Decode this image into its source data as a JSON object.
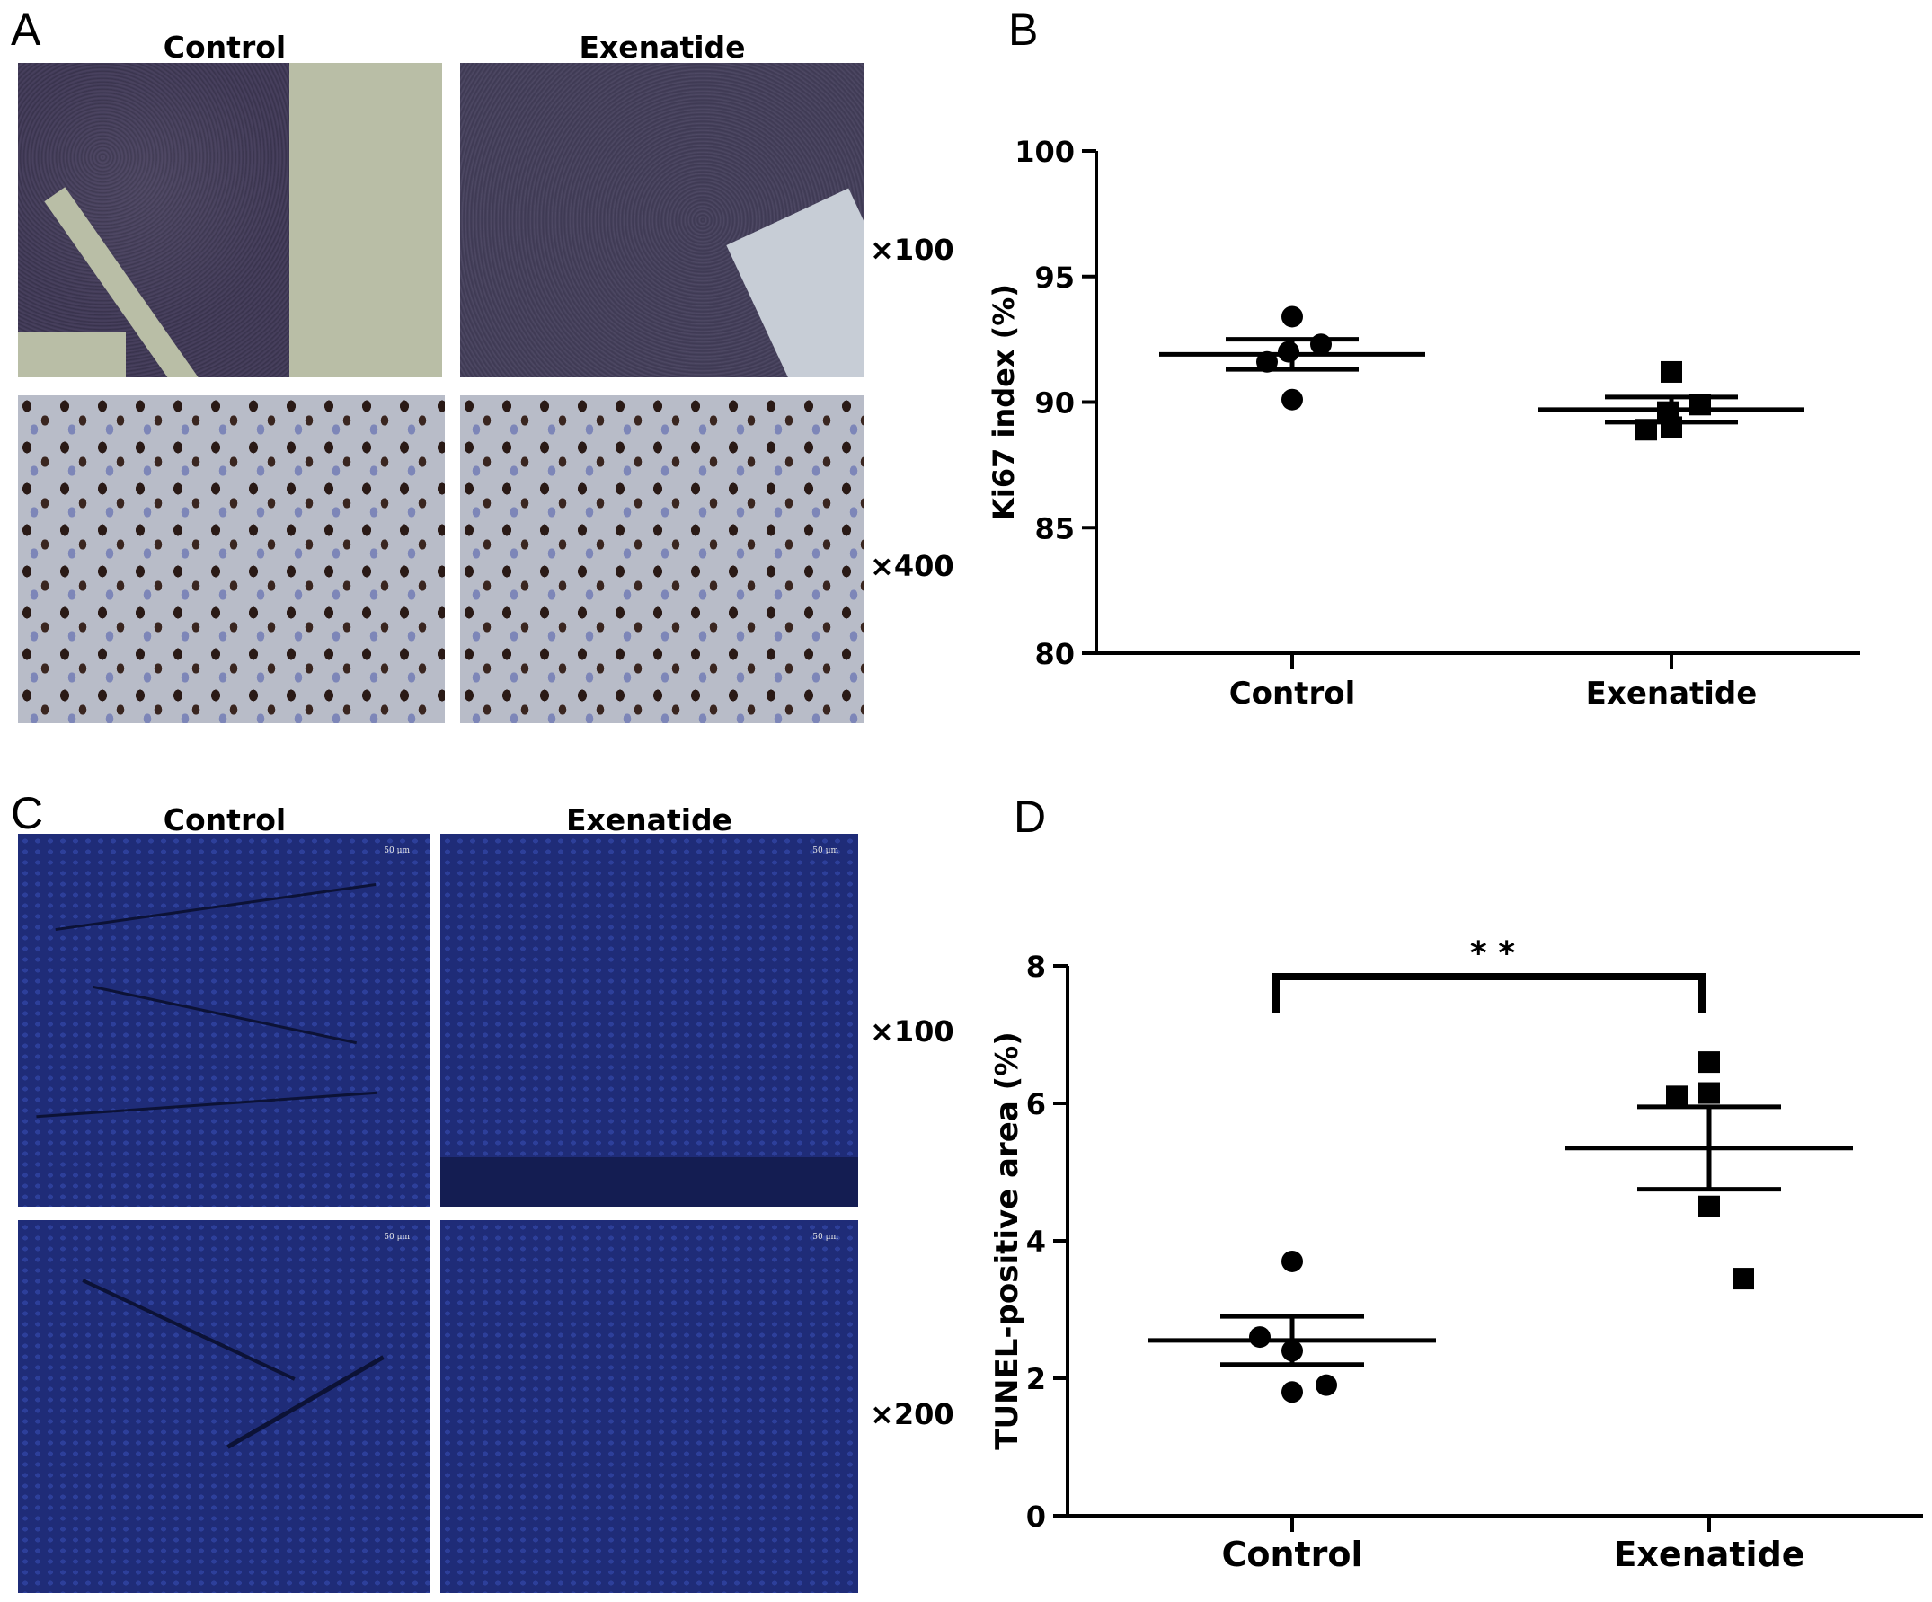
{
  "panels": {
    "A": {
      "letter": "A",
      "columns": [
        "Control",
        "Exenatide"
      ],
      "magnifications": [
        "×100",
        "×400"
      ]
    },
    "C": {
      "letter": "C",
      "columns": [
        "Control",
        "Exenatide"
      ],
      "magnifications": [
        "×100",
        "×200"
      ],
      "scale_bar": "50 μm"
    },
    "B": {
      "letter": "B"
    },
    "D": {
      "letter": "D"
    }
  },
  "chart_data": [
    {
      "panel": "B",
      "type": "scatter",
      "title": "",
      "xlabel": "",
      "ylabel": "Ki67 index (%)",
      "ylim": [
        80,
        100
      ],
      "yticks": [
        80,
        85,
        90,
        95,
        100
      ],
      "categories": [
        "Control",
        "Exenatide"
      ],
      "series": [
        {
          "name": "Control",
          "marker": "circle",
          "values": [
            93.4,
            92.0,
            92.3,
            91.6,
            90.1
          ],
          "mean": 91.9,
          "sem_low": 91.3,
          "sem_high": 92.5
        },
        {
          "name": "Exenatide",
          "marker": "square",
          "values": [
            91.2,
            89.6,
            89.9,
            88.9,
            89.0
          ],
          "mean": 89.7,
          "sem_low": 89.2,
          "sem_high": 90.2
        }
      ],
      "grid": false
    },
    {
      "panel": "D",
      "type": "scatter",
      "title": "",
      "xlabel": "",
      "ylabel": "TUNEL-positive area (%)",
      "ylim": [
        0,
        8
      ],
      "yticks": [
        0,
        2,
        4,
        6,
        8
      ],
      "categories": [
        "Control",
        "Exenatide"
      ],
      "series": [
        {
          "name": "Control",
          "marker": "circle",
          "values": [
            3.7,
            2.6,
            2.4,
            1.8,
            1.9
          ],
          "mean": 2.55,
          "sem_low": 2.2,
          "sem_high": 2.9
        },
        {
          "name": "Exenatide",
          "marker": "square",
          "values": [
            6.6,
            6.1,
            6.15,
            4.5,
            3.45
          ],
          "mean": 5.35,
          "sem_low": 4.75,
          "sem_high": 5.95
        }
      ],
      "significance": "* *",
      "grid": false
    }
  ]
}
